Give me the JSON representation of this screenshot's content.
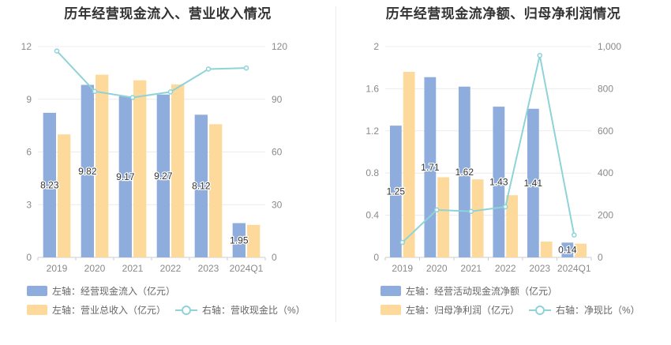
{
  "charts": [
    {
      "title": "历年经营现金流入、营业收入情况",
      "legend": [
        {
          "label": "左轴：经营现金流入（亿元）",
          "type": "bar",
          "color": "#8eaddc"
        },
        {
          "label": "左轴：营业总收入（亿元）",
          "type": "bar",
          "color": "#fdd99b"
        },
        {
          "label": "右轴：营收现金比（%）",
          "type": "line",
          "color": "#8ed3d8"
        }
      ]
    },
    {
      "title": "历年经营现金流净额、归母净利润情况",
      "legend": [
        {
          "label": "左轴：经营活动现金流净额（亿元）",
          "type": "bar",
          "color": "#8eaddc"
        },
        {
          "label": "左轴：归母净利润（亿元）",
          "type": "bar",
          "color": "#fdd99b"
        },
        {
          "label": "右轴：净现比（%）",
          "type": "line",
          "color": "#8ed3d8"
        }
      ]
    }
  ],
  "chart_data": [
    {
      "type": "bar",
      "title": "历年经营现金流入、营业收入情况",
      "categories": [
        "2019",
        "2020",
        "2021",
        "2022",
        "2023",
        "2024Q1"
      ],
      "left_axis": {
        "ylim": [
          0,
          12
        ],
        "ticks": [
          "0",
          "3",
          "6",
          "9",
          "12"
        ]
      },
      "right_axis": {
        "ylim": [
          0,
          120
        ],
        "ticks": [
          "0",
          "30",
          "60",
          "90",
          "120"
        ]
      },
      "series": [
        {
          "name": "左轴：经营现金流入（亿元）",
          "axis": "left",
          "kind": "bar",
          "color": "#8eaddc",
          "values": [
            8.23,
            9.82,
            9.17,
            9.27,
            8.12,
            1.95
          ],
          "labels": [
            "8.23",
            "9.82",
            "9.17",
            "9.27",
            "8.12",
            "1.95"
          ]
        },
        {
          "name": "左轴：营业总收入（亿元）",
          "axis": "left",
          "kind": "bar",
          "color": "#fdd99b",
          "values": [
            7.0,
            10.4,
            10.08,
            9.85,
            7.58,
            1.85
          ]
        },
        {
          "name": "右轴：营收现金比（%）",
          "axis": "right",
          "kind": "line",
          "color": "#8ed3d8",
          "values": [
            117.5,
            94.5,
            91.0,
            94.2,
            107.2,
            107.8
          ]
        }
      ],
      "grid": true,
      "legend_position": "bottom-left"
    },
    {
      "type": "bar",
      "title": "历年经营现金流净额、归母净利润情况",
      "categories": [
        "2019",
        "2020",
        "2021",
        "2022",
        "2023",
        "2024Q1"
      ],
      "left_axis": {
        "ylim": [
          0,
          2
        ],
        "ticks": [
          "0",
          "0.4",
          "0.8",
          "1.2",
          "1.6",
          "2"
        ]
      },
      "right_axis": {
        "ylim": [
          0,
          1000
        ],
        "ticks": [
          "0",
          "200",
          "400",
          "600",
          "800",
          "1,000"
        ]
      },
      "series": [
        {
          "name": "左轴：经营活动现金流净额（亿元）",
          "axis": "left",
          "kind": "bar",
          "color": "#8eaddc",
          "values": [
            1.25,
            1.71,
            1.62,
            1.43,
            1.41,
            0.14
          ],
          "labels": [
            "1.25",
            "1.71",
            "1.62",
            "1.43",
            "1.41",
            "0.14"
          ]
        },
        {
          "name": "左轴：归母净利润（亿元）",
          "axis": "left",
          "kind": "bar",
          "color": "#fdd99b",
          "values": [
            1.76,
            0.76,
            0.74,
            0.59,
            0.15,
            0.13
          ]
        },
        {
          "name": "右轴：净现比（%）",
          "axis": "right",
          "kind": "line",
          "color": "#8ed3d8",
          "values": [
            71,
            225,
            218,
            240,
            958,
            106
          ]
        }
      ],
      "grid": true,
      "legend_position": "bottom-left"
    }
  ]
}
